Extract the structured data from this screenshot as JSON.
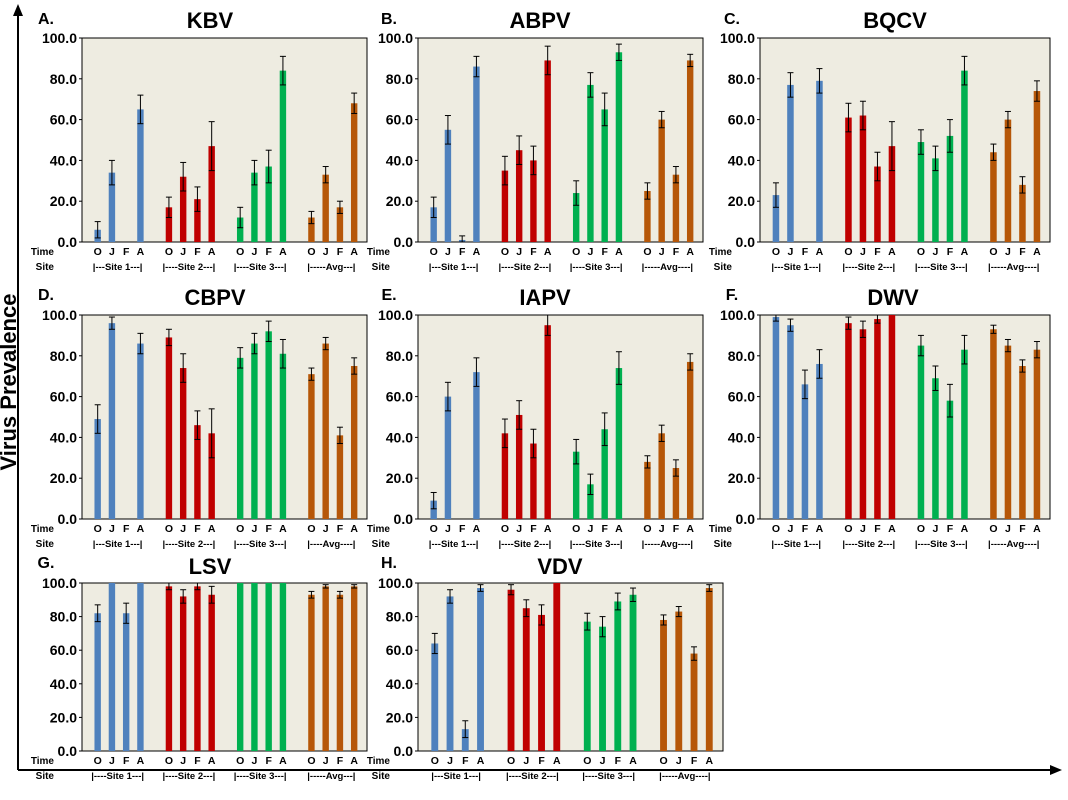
{
  "figure": {
    "ylabel": "Virus Prevalence",
    "row_time_label": "Time",
    "row_site_label": "Site",
    "colors": {
      "site1": "#4f81bd",
      "site2": "#c00000",
      "site3": "#00b050",
      "avg": "#b65708",
      "plot_bg": "#eeece1"
    }
  },
  "chart_data": [
    {
      "type": "bar",
      "label": "A.",
      "title": "KBV",
      "ylim": [
        0,
        100
      ],
      "yticks": [
        "0.0",
        "20.0",
        "40.0",
        "60.0",
        "80.0",
        "100.0"
      ],
      "categories": [
        "O",
        "J",
        "F",
        "A"
      ],
      "groups": [
        "|---Site 1---|",
        "|----Site 2---|",
        "|----Site 3---|",
        "|-----Avg---|"
      ],
      "series": [
        {
          "name": "|---Site 1---|",
          "values": [
            6,
            34,
            0,
            65
          ],
          "errors": [
            4,
            6,
            0,
            7
          ]
        },
        {
          "name": "|----Site 2---|",
          "values": [
            17,
            32,
            21,
            47
          ],
          "errors": [
            5,
            7,
            6,
            12
          ]
        },
        {
          "name": "|----Site 3---|",
          "values": [
            12,
            34,
            37,
            84
          ],
          "errors": [
            5,
            6,
            8,
            7
          ]
        },
        {
          "name": "|-----Avg---|",
          "values": [
            12,
            33,
            17,
            68
          ],
          "errors": [
            3,
            4,
            3,
            5
          ]
        }
      ]
    },
    {
      "type": "bar",
      "label": "B.",
      "title": "ABPV",
      "ylim": [
        0,
        100
      ],
      "yticks": [
        "0.0",
        "20.0",
        "40.0",
        "60.0",
        "80.0",
        "100.0"
      ],
      "categories": [
        "O",
        "J",
        "F",
        "A"
      ],
      "groups": [
        "|---Site 1---|",
        "|----Site 2---|",
        "|----Site 3---|",
        "|-----Avg----|"
      ],
      "series": [
        {
          "name": "|---Site 1---|",
          "values": [
            17,
            55,
            1,
            86
          ],
          "errors": [
            5,
            7,
            2,
            5
          ]
        },
        {
          "name": "|----Site 2---|",
          "values": [
            35,
            45,
            40,
            89
          ],
          "errors": [
            7,
            7,
            7,
            7
          ]
        },
        {
          "name": "|----Site 3---|",
          "values": [
            24,
            77,
            65,
            93
          ],
          "errors": [
            6,
            6,
            8,
            4
          ]
        },
        {
          "name": "|-----Avg----|",
          "values": [
            25,
            60,
            33,
            89
          ],
          "errors": [
            4,
            4,
            4,
            3
          ]
        }
      ]
    },
    {
      "type": "bar",
      "label": "C.",
      "title": "BQCV",
      "ylim": [
        0,
        100
      ],
      "yticks": [
        "0.0",
        "20.0",
        "40.0",
        "60.0",
        "80.0",
        "100.0"
      ],
      "categories": [
        "O",
        "J",
        "F",
        "A"
      ],
      "groups": [
        "|---Site 1---|",
        "|----Site 2---|",
        "|----Site 3---|",
        "|-----Avg----|"
      ],
      "series": [
        {
          "name": "|---Site 1---|",
          "values": [
            23,
            77,
            0,
            79
          ],
          "errors": [
            6,
            6,
            0,
            6
          ]
        },
        {
          "name": "|----Site 2---|",
          "values": [
            61,
            62,
            37,
            47
          ],
          "errors": [
            7,
            7,
            7,
            12
          ]
        },
        {
          "name": "|----Site 3---|",
          "values": [
            49,
            41,
            52,
            84
          ],
          "errors": [
            6,
            6,
            8,
            7
          ]
        },
        {
          "name": "|-----Avg----|",
          "values": [
            44,
            60,
            28,
            74
          ],
          "errors": [
            4,
            4,
            4,
            5
          ]
        }
      ]
    },
    {
      "type": "bar",
      "label": "D.",
      "title": "CBPV",
      "ylim": [
        0,
        100
      ],
      "yticks": [
        "0.0",
        "20.0",
        "40.0",
        "60.0",
        "80.0",
        "100.0"
      ],
      "categories": [
        "O",
        "J",
        "F",
        "A"
      ],
      "groups": [
        "|---Site 1---|",
        "|----Site 2---|",
        "|----Site 3---|",
        "|----Avg----|"
      ],
      "series": [
        {
          "name": "|---Site 1---|",
          "values": [
            49,
            96,
            0,
            86
          ],
          "errors": [
            7,
            3,
            0,
            5
          ]
        },
        {
          "name": "|----Site 2---|",
          "values": [
            89,
            74,
            46,
            42
          ],
          "errors": [
            4,
            7,
            7,
            12
          ]
        },
        {
          "name": "|----Site 3---|",
          "values": [
            79,
            86,
            92,
            81
          ],
          "errors": [
            5,
            5,
            5,
            7
          ]
        },
        {
          "name": "|----Avg----|",
          "values": [
            71,
            86,
            41,
            75
          ],
          "errors": [
            3,
            3,
            4,
            4
          ]
        }
      ]
    },
    {
      "type": "bar",
      "label": "E.",
      "title": "IAPV",
      "ylim": [
        0,
        100
      ],
      "yticks": [
        "0.0",
        "20.0",
        "40.0",
        "60.0",
        "80.0",
        "100.0"
      ],
      "categories": [
        "O",
        "J",
        "F",
        "A"
      ],
      "groups": [
        "|---Site 1---|",
        "|----Site 2---|",
        "|----Site 3---|",
        "|-----Avg----|"
      ],
      "series": [
        {
          "name": "|---Site 1---|",
          "values": [
            9,
            60,
            0,
            72
          ],
          "errors": [
            4,
            7,
            0,
            7
          ]
        },
        {
          "name": "|----Site 2---|",
          "values": [
            42,
            51,
            37,
            95
          ],
          "errors": [
            7,
            7,
            7,
            5
          ]
        },
        {
          "name": "|----Site 3---|",
          "values": [
            33,
            17,
            44,
            74
          ],
          "errors": [
            6,
            5,
            8,
            8
          ]
        },
        {
          "name": "|-----Avg----|",
          "values": [
            28,
            42,
            25,
            77
          ],
          "errors": [
            3,
            4,
            4,
            4
          ]
        }
      ]
    },
    {
      "type": "bar",
      "label": "F.",
      "title": "DWV",
      "ylim": [
        0,
        100
      ],
      "yticks": [
        "0.0",
        "20.0",
        "40.0",
        "60.0",
        "80.0",
        "100.0"
      ],
      "categories": [
        "O",
        "J",
        "F",
        "A"
      ],
      "groups": [
        "|---Site 1---|",
        "|----Site 2---|",
        "|----Site 3---|",
        "|-----Avg----|"
      ],
      "series": [
        {
          "name": "|---Site 1---|",
          "values": [
            99,
            95,
            66,
            76
          ],
          "errors": [
            2,
            3,
            7,
            7
          ]
        },
        {
          "name": "|----Site 2---|",
          "values": [
            96,
            93,
            98,
            100
          ],
          "errors": [
            3,
            4,
            2,
            0
          ]
        },
        {
          "name": "|----Site 3---|",
          "values": [
            85,
            69,
            58,
            83
          ],
          "errors": [
            5,
            6,
            8,
            7
          ]
        },
        {
          "name": "|-----Avg----|",
          "values": [
            93,
            85,
            75,
            83
          ],
          "errors": [
            2,
            3,
            3,
            4
          ]
        }
      ]
    },
    {
      "type": "bar",
      "label": "G.",
      "title": "LSV",
      "ylim": [
        0,
        100
      ],
      "yticks": [
        "0.0",
        "20.0",
        "40.0",
        "60.0",
        "80.0",
        "100.0"
      ],
      "categories": [
        "O",
        "J",
        "F",
        "A"
      ],
      "groups": [
        "|----Site 1---|",
        "|----Site 2---|",
        "|----Site 3---|",
        "|-----Avg---|"
      ],
      "series": [
        {
          "name": "|----Site 1---|",
          "values": [
            82,
            100,
            82,
            100
          ],
          "errors": [
            5,
            0,
            6,
            0
          ]
        },
        {
          "name": "|----Site 2---|",
          "values": [
            98,
            92,
            98,
            93
          ],
          "errors": [
            2,
            4,
            2,
            5
          ]
        },
        {
          "name": "|----Site 3---|",
          "values": [
            100,
            100,
            100,
            100
          ],
          "errors": [
            0,
            0,
            0,
            0
          ]
        },
        {
          "name": "|-----Avg---|",
          "values": [
            93,
            98,
            93,
            98
          ],
          "errors": [
            2,
            1,
            2,
            1
          ]
        }
      ]
    },
    {
      "type": "bar",
      "label": "H.",
      "title": "VDV",
      "ylim": [
        0,
        100
      ],
      "yticks": [
        "0.0",
        "20.0",
        "40.0",
        "60.0",
        "80.0",
        "100.0"
      ],
      "categories": [
        "O",
        "J",
        "F",
        "A"
      ],
      "groups": [
        "|---Site 1---|",
        "|----Site 2---|",
        "|----Site 3---|",
        "|-----Avg----|"
      ],
      "series": [
        {
          "name": "|---Site 1---|",
          "values": [
            64,
            92,
            13,
            97
          ],
          "errors": [
            6,
            4,
            5,
            2
          ]
        },
        {
          "name": "|----Site 2---|",
          "values": [
            96,
            85,
            81,
            100
          ],
          "errors": [
            3,
            5,
            6,
            0
          ]
        },
        {
          "name": "|----Site 3---|",
          "values": [
            77,
            74,
            89,
            93
          ],
          "errors": [
            5,
            6,
            5,
            4
          ]
        },
        {
          "name": "|-----Avg----|",
          "values": [
            78,
            83,
            58,
            97
          ],
          "errors": [
            3,
            3,
            4,
            2
          ]
        }
      ]
    }
  ]
}
